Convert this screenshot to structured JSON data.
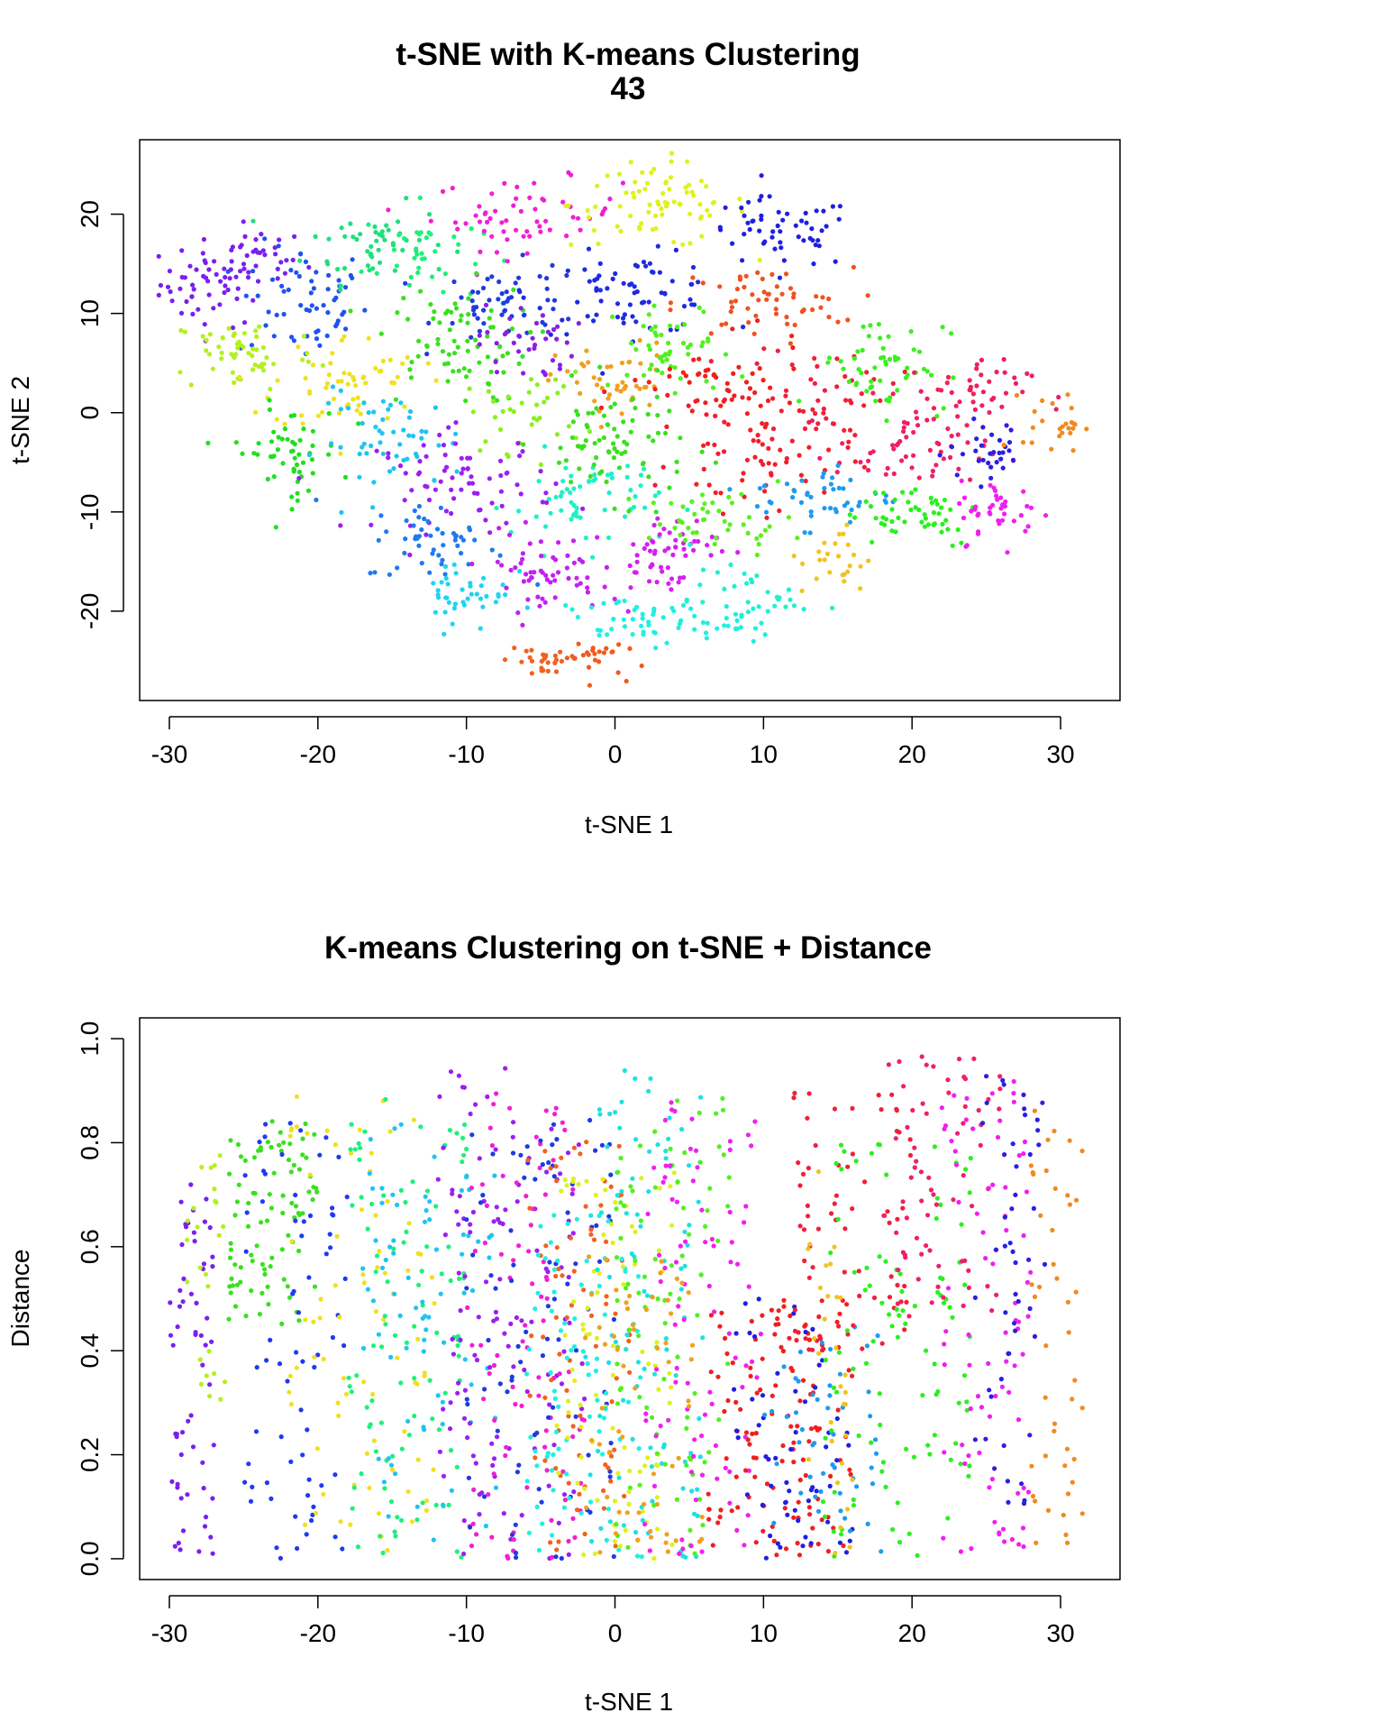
{
  "chart_data": [
    {
      "type": "scatter",
      "title": "t-SNE with K-means Clustering",
      "subtitle": "43",
      "xlabel": "t-SNE 1",
      "ylabel": "t-SNE 2",
      "xlim": [
        -32,
        34
      ],
      "ylim": [
        -29,
        27.5
      ],
      "xticks": [
        -30,
        -20,
        -10,
        0,
        10,
        20,
        30
      ],
      "yticks": [
        -20,
        -10,
        0,
        10,
        20
      ],
      "xtick_labels": [
        "-30",
        "-20",
        "-10",
        "0",
        "10",
        "20",
        "30"
      ],
      "ytick_labels": [
        "-20",
        "-10",
        "0",
        "10",
        "20"
      ],
      "grid": false,
      "legend": "none",
      "marker_size": 2.6,
      "clusters": [
        {
          "cx": -27,
          "cy": 13,
          "sx": 1.8,
          "sy": 2.2,
          "n": 55,
          "color": "#7a1ff0"
        },
        {
          "cx": -24,
          "cy": 15.5,
          "sx": 1.6,
          "sy": 1.5,
          "n": 30,
          "color": "#7a1ff0"
        },
        {
          "cx": -21,
          "cy": 11,
          "sx": 2.2,
          "sy": 3.0,
          "n": 60,
          "color": "#1f52f0"
        },
        {
          "cx": -16,
          "cy": 17,
          "sx": 2.4,
          "sy": 2.0,
          "n": 50,
          "color": "#1fe07a"
        },
        {
          "cx": -13,
          "cy": 16,
          "sx": 2.0,
          "sy": 2.5,
          "n": 35,
          "color": "#1ff07a"
        },
        {
          "cx": -6,
          "cy": 20,
          "sx": 3.2,
          "sy": 1.8,
          "n": 60,
          "color": "#f01fd4"
        },
        {
          "cx": 3,
          "cy": 21,
          "sx": 3.0,
          "sy": 2.2,
          "n": 75,
          "color": "#e0f01f"
        },
        {
          "cx": 11,
          "cy": 18,
          "sx": 2.6,
          "sy": 1.8,
          "n": 55,
          "color": "#1f1fe0"
        },
        {
          "cx": -7,
          "cy": 11,
          "sx": 2.5,
          "sy": 2.0,
          "n": 55,
          "color": "#1f3ae0"
        },
        {
          "cx": 1,
          "cy": 12,
          "sx": 3.2,
          "sy": 2.0,
          "n": 70,
          "color": "#1f2ae0"
        },
        {
          "cx": 10,
          "cy": 11,
          "sx": 3.0,
          "sy": 1.8,
          "n": 55,
          "color": "#f0521f"
        },
        {
          "cx": -25,
          "cy": 6,
          "sx": 2.5,
          "sy": 2.0,
          "n": 55,
          "color": "#b4f01f"
        },
        {
          "cx": -18,
          "cy": 3,
          "sx": 2.5,
          "sy": 2.5,
          "n": 60,
          "color": "#f0e01f"
        },
        {
          "cx": -11,
          "cy": 7,
          "sx": 2.6,
          "sy": 3.0,
          "n": 75,
          "color": "#3ae01f"
        },
        {
          "cx": -6,
          "cy": 7,
          "sx": 1.6,
          "sy": 2.0,
          "n": 35,
          "color": "#8a1fe0"
        },
        {
          "cx": 0,
          "cy": 3,
          "sx": 2.0,
          "sy": 2.0,
          "n": 45,
          "color": "#f0a01f"
        },
        {
          "cx": 4,
          "cy": 6,
          "sx": 2.0,
          "sy": 2.5,
          "n": 50,
          "color": "#52f01f"
        },
        {
          "cx": -6,
          "cy": 0,
          "sx": 2.0,
          "sy": 2.0,
          "n": 35,
          "color": "#8af01f"
        },
        {
          "cx": -22,
          "cy": -4,
          "sx": 1.8,
          "sy": 2.4,
          "n": 55,
          "color": "#1fe01f"
        },
        {
          "cx": -15,
          "cy": -3,
          "sx": 2.5,
          "sy": 2.5,
          "n": 55,
          "color": "#1fc4f0"
        },
        {
          "cx": -10,
          "cy": -7,
          "sx": 3.0,
          "sy": 2.5,
          "n": 75,
          "color": "#9a1ff0"
        },
        {
          "cx": -2,
          "cy": -9,
          "sx": 2.5,
          "sy": 2.5,
          "n": 60,
          "color": "#1ff0c4"
        },
        {
          "cx": 0,
          "cy": -3,
          "sx": 2.5,
          "sy": 2.8,
          "n": 75,
          "color": "#3ae01f"
        },
        {
          "cx": 7,
          "cy": 2,
          "sx": 3.0,
          "sy": 2.5,
          "n": 60,
          "color": "#f01f1f"
        },
        {
          "cx": 10,
          "cy": -5,
          "sx": 3.0,
          "sy": 2.5,
          "n": 55,
          "color": "#f01f2a"
        },
        {
          "cx": 14,
          "cy": 2,
          "sx": 2.5,
          "sy": 2.5,
          "n": 45,
          "color": "#f01f3a"
        },
        {
          "cx": 18,
          "cy": 5,
          "sx": 2.2,
          "sy": 2.5,
          "n": 55,
          "color": "#3af01f"
        },
        {
          "cx": 23,
          "cy": 2,
          "sx": 2.4,
          "sy": 1.6,
          "n": 45,
          "color": "#f01f5a"
        },
        {
          "cx": 20,
          "cy": -4,
          "sx": 2.6,
          "sy": 2.0,
          "n": 55,
          "color": "#f01f6a"
        },
        {
          "cx": 25.5,
          "cy": -4,
          "sx": 1.5,
          "sy": 1.6,
          "n": 30,
          "color": "#2a1fe0"
        },
        {
          "cx": 29.5,
          "cy": -1,
          "sx": 1.0,
          "sy": 1.5,
          "n": 25,
          "color": "#f08a1f"
        },
        {
          "cx": 14,
          "cy": -8.5,
          "sx": 2.4,
          "sy": 1.5,
          "n": 45,
          "color": "#1f9af0"
        },
        {
          "cx": 20,
          "cy": -10,
          "sx": 2.4,
          "sy": 1.8,
          "n": 50,
          "color": "#2af01f"
        },
        {
          "cx": 26,
          "cy": -10,
          "sx": 1.4,
          "sy": 1.6,
          "n": 40,
          "color": "#f01ff0"
        },
        {
          "cx": -12,
          "cy": -13,
          "sx": 2.4,
          "sy": 2.0,
          "n": 50,
          "color": "#1f7af0"
        },
        {
          "cx": -10,
          "cy": -18,
          "sx": 1.5,
          "sy": 2.0,
          "n": 40,
          "color": "#1fd4f0"
        },
        {
          "cx": -5,
          "cy": -16,
          "sx": 2.0,
          "sy": 2.0,
          "n": 55,
          "color": "#c41ff0"
        },
        {
          "cx": 3,
          "cy": -14,
          "sx": 2.0,
          "sy": 2.0,
          "n": 60,
          "color": "#d41ff0"
        },
        {
          "cx": 7,
          "cy": -11,
          "sx": 2.5,
          "sy": 1.5,
          "n": 45,
          "color": "#5af01f"
        },
        {
          "cx": 15,
          "cy": -15,
          "sx": 1.2,
          "sy": 1.8,
          "n": 25,
          "color": "#f0c41f"
        },
        {
          "cx": 2,
          "cy": -21,
          "sx": 3.0,
          "sy": 1.2,
          "n": 55,
          "color": "#1ff0e0"
        },
        {
          "cx": 9,
          "cy": -19,
          "sx": 2.0,
          "sy": 1.6,
          "n": 40,
          "color": "#1ff0d0"
        },
        {
          "cx": -5,
          "cy": -25,
          "sx": 1.2,
          "sy": 1.0,
          "n": 25,
          "color": "#f0621f"
        },
        {
          "cx": -1.5,
          "cy": -24.5,
          "sx": 1.0,
          "sy": 1.0,
          "n": 25,
          "color": "#f05a1f"
        }
      ]
    },
    {
      "type": "scatter",
      "title": "K-means Clustering on t-SNE + Distance",
      "xlabel": "t-SNE 1",
      "ylabel": "Distance",
      "xlim": [
        -32,
        34
      ],
      "ylim": [
        -0.04,
        1.04
      ],
      "xticks": [
        -30,
        -20,
        -10,
        0,
        10,
        20,
        30
      ],
      "yticks": [
        0.0,
        0.2,
        0.4,
        0.6,
        0.8,
        1.0
      ],
      "xtick_labels": [
        "-30",
        "-20",
        "-10",
        "0",
        "10",
        "20",
        "30"
      ],
      "ytick_labels": [
        "0.0",
        "0.2",
        "0.4",
        "0.6",
        "0.8",
        "1.0"
      ],
      "grid": false,
      "legend": "none",
      "marker_size": 2.6,
      "groups": [
        {
          "xmin": -30,
          "xmax": -27,
          "ymin": 0.0,
          "ymax": 0.72,
          "n": 60,
          "color": "#7a1ff0"
        },
        {
          "xmin": -29,
          "xmax": -26,
          "ymin": 0.3,
          "ymax": 0.78,
          "n": 25,
          "color": "#b4f01f"
        },
        {
          "xmin": -26,
          "xmax": -20,
          "ymin": 0.45,
          "ymax": 0.85,
          "n": 90,
          "color": "#3ae01f"
        },
        {
          "xmin": -25,
          "xmax": -18,
          "ymin": 0.0,
          "ymax": 0.85,
          "n": 70,
          "color": "#1f3af0"
        },
        {
          "xmin": -22,
          "xmax": -12,
          "ymin": 0.0,
          "ymax": 0.9,
          "n": 80,
          "color": "#f0e01f"
        },
        {
          "xmin": -18,
          "xmax": -10,
          "ymin": 0.0,
          "ymax": 0.92,
          "n": 100,
          "color": "#1ff07a"
        },
        {
          "xmin": -17,
          "xmax": -8,
          "ymin": 0.0,
          "ymax": 0.85,
          "n": 80,
          "color": "#1fc4f0"
        },
        {
          "xmin": -12,
          "xmax": -2,
          "ymin": 0.0,
          "ymax": 0.95,
          "n": 120,
          "color": "#9a1ff0"
        },
        {
          "xmin": -10,
          "xmax": -2,
          "ymin": 0.0,
          "ymax": 0.9,
          "n": 90,
          "color": "#f01fd4"
        },
        {
          "xmin": -10,
          "xmax": 0,
          "ymin": 0.0,
          "ymax": 0.85,
          "n": 90,
          "color": "#1f3ae0"
        },
        {
          "xmin": -6,
          "xmax": 1,
          "ymin": 0.0,
          "ymax": 0.82,
          "n": 80,
          "color": "#f0621f"
        },
        {
          "xmin": -6,
          "xmax": 2,
          "ymin": 0.0,
          "ymax": 0.7,
          "n": 80,
          "color": "#1ff0e0"
        },
        {
          "xmin": -4,
          "xmax": 4,
          "ymin": 0.0,
          "ymax": 0.75,
          "n": 90,
          "color": "#e0f01f"
        },
        {
          "xmin": -2,
          "xmax": 6,
          "ymin": 0.0,
          "ymax": 0.95,
          "n": 100,
          "color": "#1fe0e0"
        },
        {
          "xmin": 0,
          "xmax": 8,
          "ymin": 0.0,
          "ymax": 0.92,
          "n": 90,
          "color": "#52f01f"
        },
        {
          "xmin": 2,
          "xmax": 10,
          "ymin": 0.0,
          "ymax": 0.9,
          "n": 90,
          "color": "#f01ff0"
        },
        {
          "xmin": -2,
          "xmax": 6,
          "ymin": 0.0,
          "ymax": 0.6,
          "n": 60,
          "color": "#f0a01f"
        },
        {
          "xmin": 6,
          "xmax": 16,
          "ymin": 0.0,
          "ymax": 0.5,
          "n": 130,
          "color": "#f01f1f"
        },
        {
          "xmin": 8,
          "xmax": 16,
          "ymin": 0.0,
          "ymax": 0.5,
          "n": 60,
          "color": "#1f1fe0"
        },
        {
          "xmin": 10,
          "xmax": 18,
          "ymin": 0.0,
          "ymax": 0.45,
          "n": 50,
          "color": "#1f9af0"
        },
        {
          "xmin": 12,
          "xmax": 20,
          "ymin": 0.4,
          "ymax": 0.9,
          "n": 70,
          "color": "#f01f3a"
        },
        {
          "xmin": 14,
          "xmax": 24,
          "ymin": 0.0,
          "ymax": 0.8,
          "n": 100,
          "color": "#2af01f"
        },
        {
          "xmin": 18,
          "xmax": 26,
          "ymin": 0.45,
          "ymax": 0.97,
          "n": 70,
          "color": "#f01f6a"
        },
        {
          "xmin": 22,
          "xmax": 28,
          "ymin": 0.0,
          "ymax": 0.97,
          "n": 80,
          "color": "#f01ff0"
        },
        {
          "xmin": 24,
          "xmax": 29,
          "ymin": 0.1,
          "ymax": 0.95,
          "n": 50,
          "color": "#2a1fe0"
        },
        {
          "xmin": 28,
          "xmax": 31.5,
          "ymin": 0.0,
          "ymax": 0.88,
          "n": 45,
          "color": "#f08a1f"
        },
        {
          "xmin": 13,
          "xmax": 16,
          "ymin": 0.0,
          "ymax": 0.75,
          "n": 30,
          "color": "#f0c41f"
        }
      ]
    }
  ]
}
